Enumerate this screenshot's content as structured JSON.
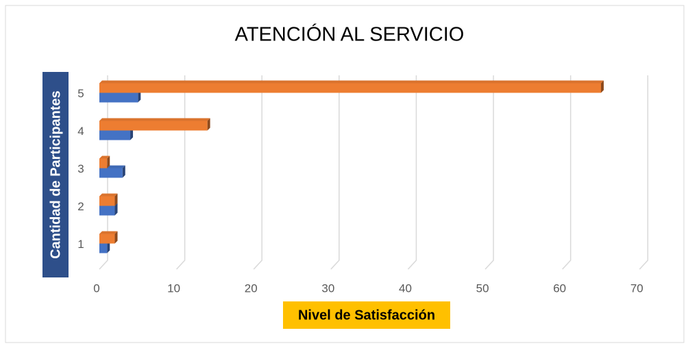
{
  "chart_data": {
    "type": "bar",
    "orientation": "horizontal",
    "title": "ATENCIÓN AL SERVICIO",
    "x_label": "Nivel de Satisfacción",
    "y_label": "Cantidad de Participantes",
    "categories": [
      "1",
      "2",
      "3",
      "4",
      "5"
    ],
    "series": [
      {
        "color": "#4472c4",
        "values": [
          1,
          2,
          3,
          4,
          5
        ]
      },
      {
        "color": "#ed7d31",
        "values": [
          2,
          2,
          1,
          14,
          65
        ]
      }
    ],
    "xlim": [
      0,
      70
    ],
    "xticks": [
      0,
      10,
      20,
      30,
      40,
      50,
      60,
      70
    ],
    "grid": true
  }
}
